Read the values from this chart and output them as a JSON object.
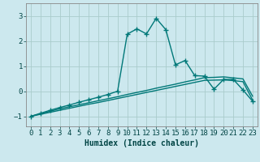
{
  "title": "",
  "xlabel": "Humidex (Indice chaleur)",
  "background_color": "#cce8ee",
  "grid_color": "#aacccc",
  "line_color": "#007878",
  "xlim": [
    -0.5,
    23.5
  ],
  "ylim": [
    -1.4,
    3.5
  ],
  "yticks": [
    -1,
    0,
    1,
    2,
    3
  ],
  "xticks": [
    0,
    1,
    2,
    3,
    4,
    5,
    6,
    7,
    8,
    9,
    10,
    11,
    12,
    13,
    14,
    15,
    16,
    17,
    18,
    19,
    20,
    21,
    22,
    23
  ],
  "series": [
    {
      "x": [
        0,
        1,
        2,
        3,
        4,
        5,
        6,
        7,
        8,
        9,
        10,
        11,
        12,
        13,
        14,
        15,
        16,
        17,
        18,
        19,
        20,
        21,
        22,
        23
      ],
      "y": [
        -1.0,
        -0.92,
        -0.84,
        -0.76,
        -0.68,
        -0.6,
        -0.52,
        -0.45,
        -0.37,
        -0.29,
        -0.21,
        -0.13,
        -0.05,
        0.03,
        0.11,
        0.19,
        0.27,
        0.35,
        0.43,
        0.44,
        0.45,
        0.42,
        0.38,
        -0.35
      ],
      "marker": null,
      "linewidth": 1.0
    },
    {
      "x": [
        0,
        1,
        2,
        3,
        4,
        5,
        6,
        7,
        8,
        9,
        10,
        11,
        12,
        13,
        14,
        15,
        16,
        17,
        18,
        19,
        20,
        21,
        22,
        23
      ],
      "y": [
        -1.0,
        -0.9,
        -0.8,
        -0.7,
        -0.62,
        -0.54,
        -0.46,
        -0.38,
        -0.3,
        -0.22,
        -0.13,
        -0.05,
        0.03,
        0.12,
        0.2,
        0.28,
        0.37,
        0.45,
        0.54,
        0.55,
        0.57,
        0.53,
        0.49,
        -0.2
      ],
      "marker": null,
      "linewidth": 1.0
    },
    {
      "x": [
        0,
        1,
        2,
        3,
        4,
        5,
        6,
        7,
        8,
        9,
        10,
        11,
        12,
        13,
        14,
        15,
        16,
        17,
        18,
        19,
        20,
        21,
        22,
        23
      ],
      "y": [
        -1.0,
        -0.88,
        -0.76,
        -0.65,
        -0.55,
        -0.44,
        -0.34,
        -0.24,
        -0.13,
        0.0,
        2.27,
        2.48,
        2.28,
        2.9,
        2.45,
        1.05,
        1.22,
        0.62,
        0.6,
        0.08,
        0.47,
        0.47,
        0.05,
        -0.4
      ],
      "marker": "+",
      "linewidth": 1.0
    }
  ],
  "xlabel_fontsize": 7,
  "tick_fontsize": 6.5
}
